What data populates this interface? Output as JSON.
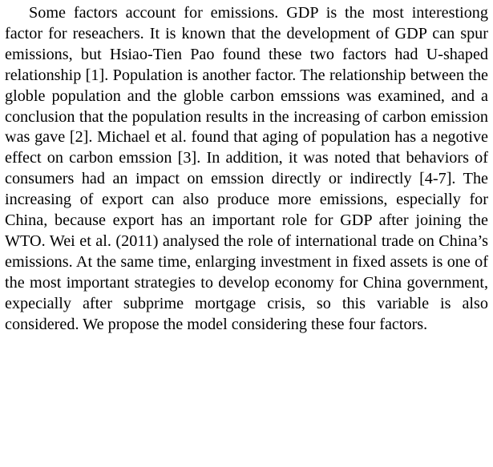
{
  "paragraph": {
    "text": "Some factors account for emissions. GDP is the most interestiong factor for reseachers. It is known that the development of GDP can spur emissions, but Hsiao-Tien Pao found these two factors had U-shaped relationship [1]. Population is another factor. The relationship between the globle population and the globle carbon emssions was examined, and a conclusion that the population results in the increasing of carbon emission was gave [2]. Michael et al. found that aging of population has a negotive effect on carbon emssion [3]. In addition, it was noted that behaviors of consumers had an impact on emssion directly or indirectly [4-7]. The increasing of export can also produce more emissions, especially for China, because export has an important role for GDP after joining the WTO. Wei et al. (2011) analysed the role of international trade on China’s emissions. At the same time, enlarging investment in fixed assets is one of the most important strategies to develop economy for China government, expecially after subprime mortgage crisis, so this variable is also considered.  We propose the model considering these four factors."
  }
}
